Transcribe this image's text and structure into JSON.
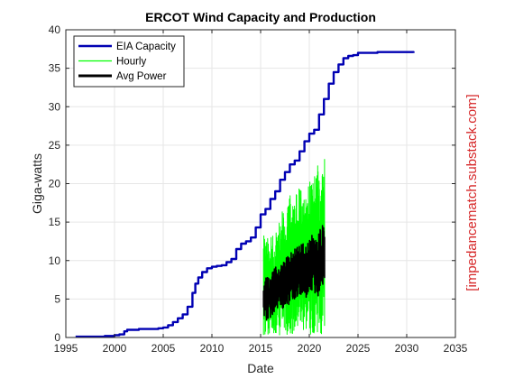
{
  "chart_data": {
    "type": "line",
    "title": "ERCOT Wind Capacity and Production",
    "xlabel": "Date",
    "ylabel": "Giga-watts",
    "xlim": [
      1995,
      2035
    ],
    "ylim": [
      0,
      40
    ],
    "xticks": [
      1995,
      2000,
      2005,
      2010,
      2015,
      2020,
      2025,
      2030,
      2035
    ],
    "yticks": [
      0,
      5,
      10,
      15,
      20,
      25,
      30,
      35,
      40
    ],
    "grid": true,
    "legend_position": "top-left",
    "watermark": "[impedancematch.substack.com]",
    "series": [
      {
        "name": "EIA Capacity",
        "color": "#0000b3",
        "style": "line",
        "x": [
          1996.0,
          1998.0,
          1999.0,
          1999.5,
          2000.0,
          2000.5,
          2001.0,
          2001.3,
          2001.7,
          2002.5,
          2003.5,
          2004.5,
          2005.0,
          2005.5,
          2006.0,
          2006.5,
          2007.0,
          2007.5,
          2008.0,
          2008.3,
          2008.6,
          2009.0,
          2009.5,
          2010.0,
          2010.5,
          2011.0,
          2011.5,
          2012.0,
          2012.5,
          2013.0,
          2013.5,
          2014.0,
          2014.5,
          2015.0,
          2015.5,
          2016.0,
          2016.5,
          2017.0,
          2017.5,
          2018.0,
          2018.5,
          2019.0,
          2019.5,
          2020.0,
          2020.5,
          2021.0,
          2021.5,
          2022.0,
          2022.5,
          2023.0,
          2023.5,
          2024.0,
          2024.5,
          2025.0,
          2027.0,
          2029.0,
          2030.7
        ],
        "y": [
          0.1,
          0.1,
          0.2,
          0.2,
          0.3,
          0.4,
          0.8,
          1.0,
          1.0,
          1.1,
          1.1,
          1.2,
          1.3,
          1.6,
          2.0,
          2.5,
          3.0,
          4.0,
          5.8,
          7.0,
          7.8,
          8.5,
          9.0,
          9.2,
          9.3,
          9.4,
          9.8,
          10.2,
          11.5,
          12.2,
          12.5,
          13.0,
          14.3,
          16.0,
          16.7,
          18.0,
          19.0,
          20.5,
          21.5,
          22.5,
          23.0,
          24.2,
          25.5,
          26.5,
          27.0,
          29.0,
          31.0,
          33.0,
          34.5,
          35.5,
          36.3,
          36.6,
          36.7,
          37.0,
          37.1,
          37.1,
          37.0
        ]
      },
      {
        "name": "Hourly",
        "color": "#00ff00",
        "style": "band",
        "x": [
          2015.3,
          2015.6,
          2016.0,
          2016.4,
          2016.8,
          2017.2,
          2017.6,
          2018.0,
          2018.4,
          2018.8,
          2019.2,
          2019.6,
          2020.0,
          2020.4,
          2020.8,
          2021.2,
          2021.6
        ],
        "y_min": [
          0.3,
          0.3,
          0.3,
          0.3,
          0.3,
          0.3,
          0.3,
          0.3,
          0.3,
          0.3,
          0.3,
          0.3,
          0.3,
          0.3,
          0.3,
          0.3,
          0.3
        ],
        "y_max": [
          13.5,
          12.5,
          13.8,
          13.0,
          15.0,
          17.0,
          15.5,
          18.5,
          17.5,
          19.5,
          19.0,
          20.0,
          20.5,
          21.5,
          23.0,
          21.0,
          23.5
        ]
      },
      {
        "name": "Avg Power",
        "color": "#000000",
        "style": "band",
        "x": [
          2015.3,
          2015.6,
          2016.0,
          2016.4,
          2016.8,
          2017.2,
          2017.6,
          2018.0,
          2018.4,
          2018.8,
          2019.2,
          2019.6,
          2020.0,
          2020.4,
          2020.8,
          2021.2,
          2021.6
        ],
        "y_min": [
          3.0,
          2.0,
          2.5,
          3.0,
          4.0,
          3.5,
          4.5,
          4.0,
          5.0,
          5.0,
          5.5,
          5.0,
          6.0,
          6.0,
          5.0,
          6.5,
          7.0
        ],
        "y_max": [
          6.5,
          8.5,
          8.0,
          9.0,
          9.5,
          10.0,
          10.5,
          11.0,
          11.5,
          12.0,
          12.5,
          12.0,
          13.0,
          13.5,
          13.0,
          14.5,
          16.0
        ]
      }
    ]
  }
}
